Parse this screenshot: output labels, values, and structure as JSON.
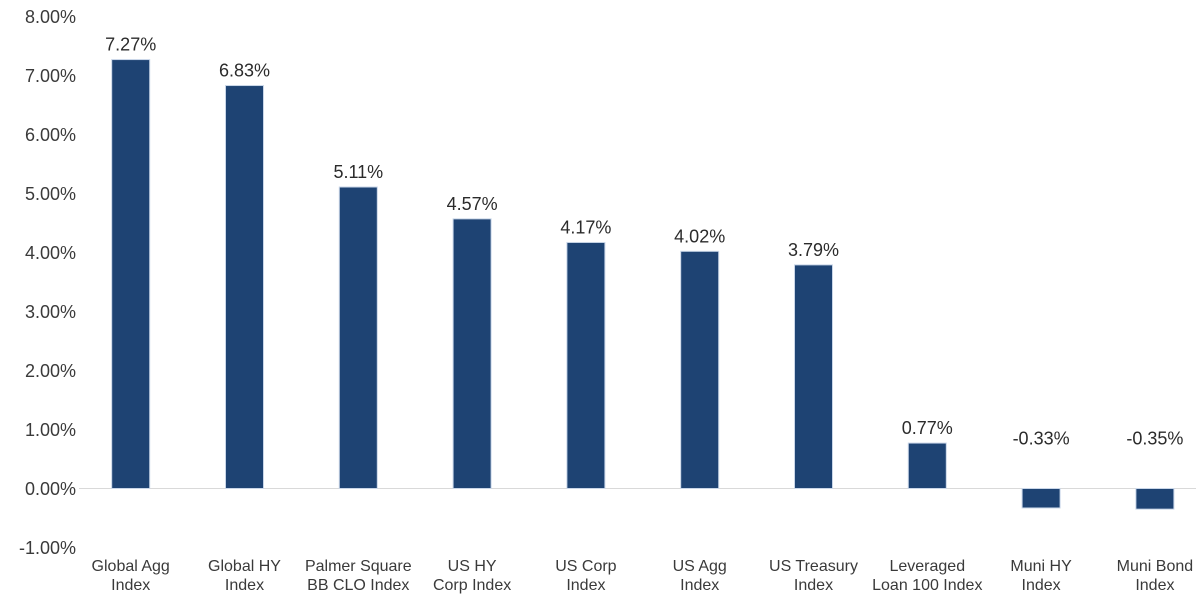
{
  "chart_data": {
    "type": "bar",
    "xlabel": "",
    "ylabel": "",
    "ylim": [
      -1,
      8
    ],
    "grid": "off",
    "zero_line": true,
    "legend": "none",
    "colors": {
      "bar_fill": "#1e4373",
      "bar_border": "#c9d6e8",
      "zero_line": "#d9d9d9",
      "tick_label": "#3a3a3a",
      "data_label": "#2b2b2b",
      "category_label": "#3a3a3a"
    },
    "y_ticks": [
      {
        "value": 8,
        "label": "8.00%"
      },
      {
        "value": 7,
        "label": "7.00%"
      },
      {
        "value": 6,
        "label": "6.00%"
      },
      {
        "value": 5,
        "label": "5.00%"
      },
      {
        "value": 4,
        "label": "4.00%"
      },
      {
        "value": 3,
        "label": "3.00%"
      },
      {
        "value": 2,
        "label": "2.00%"
      },
      {
        "value": 1,
        "label": "1.00%"
      },
      {
        "value": 0,
        "label": "0.00%"
      },
      {
        "value": -1,
        "label": "-1.00%"
      }
    ],
    "categories": [
      "Global Agg Index",
      "Global HY Index",
      "Palmer Square BB CLO Index",
      "US HY Corp Index",
      "US Corp Index",
      "US Agg Index",
      "US Treasury Index",
      "Leveraged Loan 100 Index",
      "Muni HY Index",
      "Muni Bond Index"
    ],
    "category_lines": [
      [
        "Global Agg",
        "Index"
      ],
      [
        "Global HY",
        "Index"
      ],
      [
        "Palmer Square",
        "BB CLO Index"
      ],
      [
        "US HY",
        "Corp Index"
      ],
      [
        "US Corp",
        "Index"
      ],
      [
        "US Agg",
        "Index"
      ],
      [
        "US Treasury",
        "Index"
      ],
      [
        "Leveraged",
        "Loan 100 Index"
      ],
      [
        "Muni HY",
        "Index"
      ],
      [
        "Muni Bond",
        "Index"
      ]
    ],
    "values": [
      7.27,
      6.83,
      5.11,
      4.57,
      4.17,
      4.02,
      3.79,
      0.77,
      -0.33,
      -0.35
    ],
    "data_labels": [
      "7.27%",
      "6.83%",
      "5.11%",
      "4.57%",
      "4.17%",
      "4.02%",
      "3.79%",
      "0.77%",
      "-0.33%",
      "-0.35%"
    ]
  }
}
